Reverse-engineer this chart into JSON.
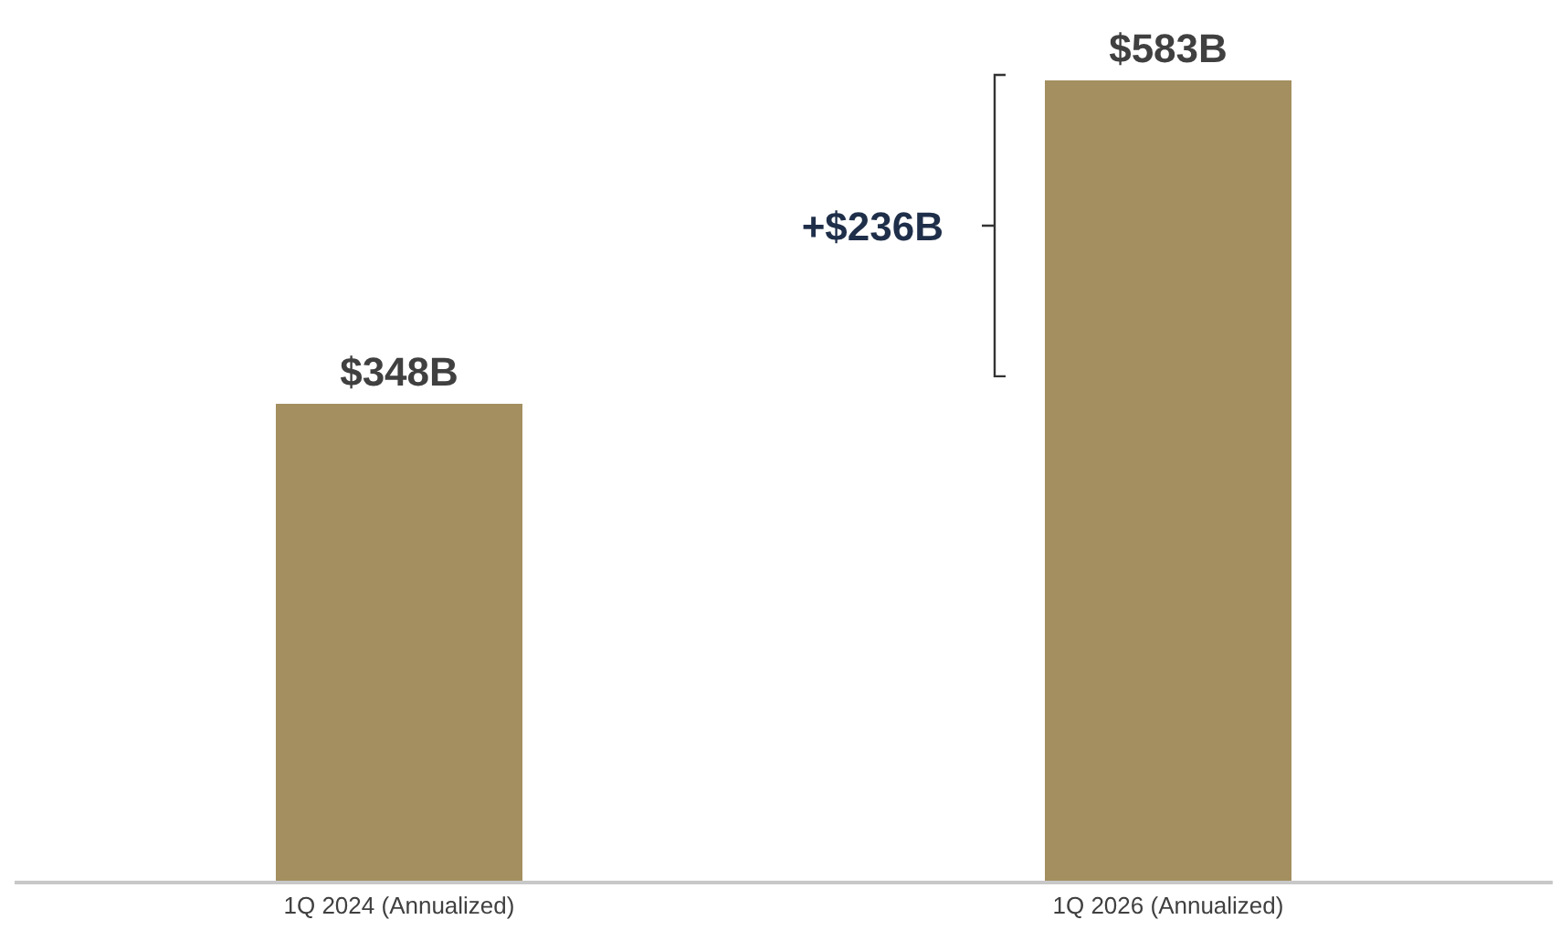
{
  "chart_data": {
    "type": "bar",
    "categories": [
      "1Q 2024 (Annualized)",
      "1Q 2026 (Annualized)"
    ],
    "values": [
      348,
      583
    ],
    "color": "#a38f5f",
    "value_labels": [
      "$348B",
      "$583B"
    ],
    "annotations": [
      "+$236B"
    ]
  }
}
